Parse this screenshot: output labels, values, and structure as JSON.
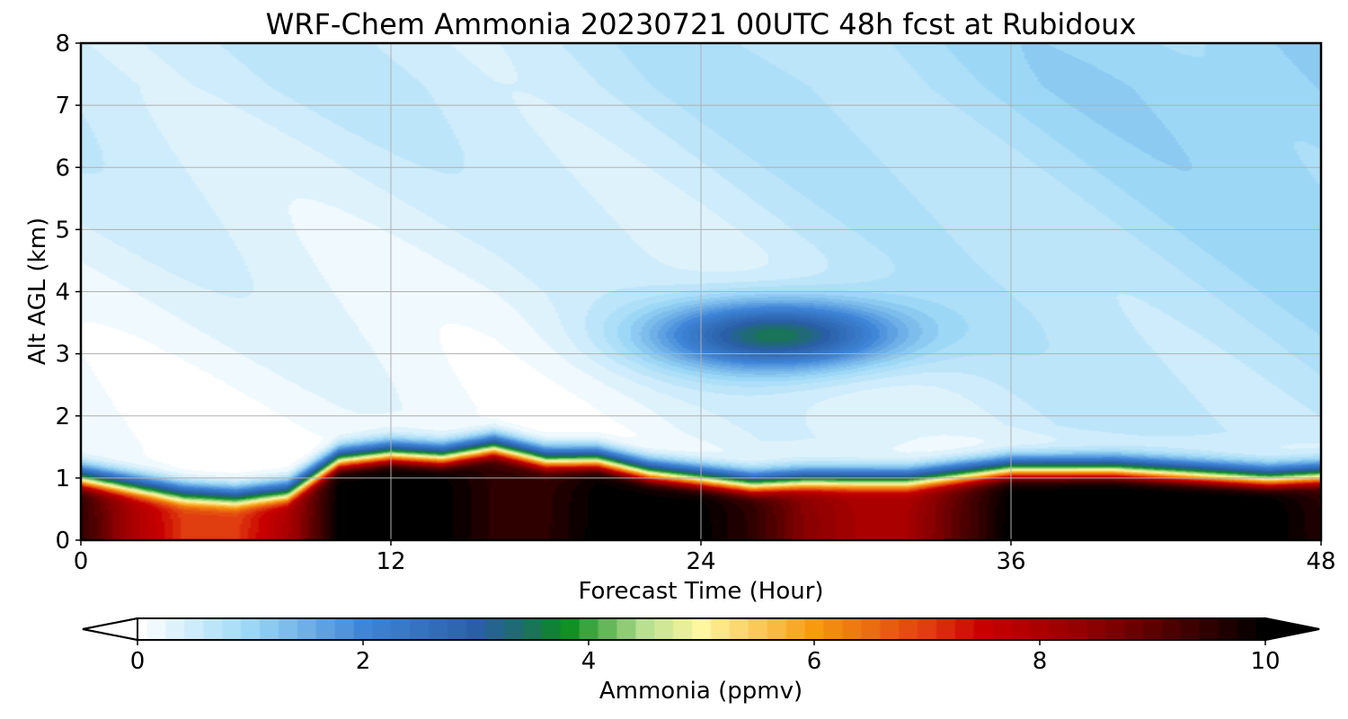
{
  "chart_data": {
    "type": "heatmap",
    "title": "WRF-Chem Ammonia  20230721 00UTC 48h fcst at Rubidoux",
    "xlabel": "Forecast Time (Hour)",
    "ylabel": "Alt AGL (km)",
    "xlim": [
      0,
      48
    ],
    "ylim": [
      0,
      8
    ],
    "x_ticks": [
      "0",
      "12",
      "24",
      "36",
      "48"
    ],
    "y_ticks": [
      "0",
      "1",
      "2",
      "3",
      "4",
      "5",
      "6",
      "7",
      "8"
    ],
    "grid": true,
    "colorbar": {
      "label": "Ammonia  (ppmv)",
      "range": [
        0,
        10
      ],
      "ticks": [
        "0",
        "2",
        "4",
        "6",
        "8",
        "10"
      ],
      "extend": "both",
      "colormap_stops": [
        {
          "v": 0,
          "c": "#ffffff"
        },
        {
          "v": 1,
          "c": "#9cd8f6"
        },
        {
          "v": 2,
          "c": "#3f86d8"
        },
        {
          "v": 3,
          "c": "#2a5fa8"
        },
        {
          "v": 3.4,
          "c": "#1e6c6c"
        },
        {
          "v": 3.8,
          "c": "#0a8c1e"
        },
        {
          "v": 4.5,
          "c": "#b8e090"
        },
        {
          "v": 5,
          "c": "#fff7a0"
        },
        {
          "v": 6,
          "c": "#f79a10"
        },
        {
          "v": 7,
          "c": "#e03d10"
        },
        {
          "v": 7.5,
          "c": "#c80000"
        },
        {
          "v": 8.5,
          "c": "#8b0000"
        },
        {
          "v": 10,
          "c": "#000000"
        }
      ]
    },
    "times_h": [
      0,
      2,
      4,
      6,
      8,
      10,
      12,
      14,
      16,
      18,
      20,
      22,
      24,
      26,
      28,
      30,
      32,
      34,
      36,
      38,
      40,
      42,
      44,
      46,
      48
    ],
    "surface_layer_top_km": [
      0.9,
      0.75,
      0.6,
      0.55,
      0.65,
      1.2,
      1.3,
      1.25,
      1.4,
      1.2,
      1.2,
      1.0,
      0.9,
      0.8,
      0.85,
      0.85,
      0.85,
      0.95,
      1.05,
      1.05,
      1.05,
      1.0,
      0.95,
      0.9,
      0.95
    ],
    "surface_layer_peak_ppmv": [
      9.5,
      8.0,
      7.0,
      7.0,
      8.0,
      10.0,
      10.0,
      10.0,
      9.5,
      9.5,
      10.0,
      10.0,
      10.0,
      9.5,
      8.5,
      8.0,
      8.0,
      9.0,
      10.0,
      10.0,
      10.0,
      10.0,
      10.0,
      10.0,
      9.5
    ],
    "aloft_max": {
      "time_h": 27,
      "alt_km": 3.3,
      "value_ppmv": 3.2
    }
  }
}
